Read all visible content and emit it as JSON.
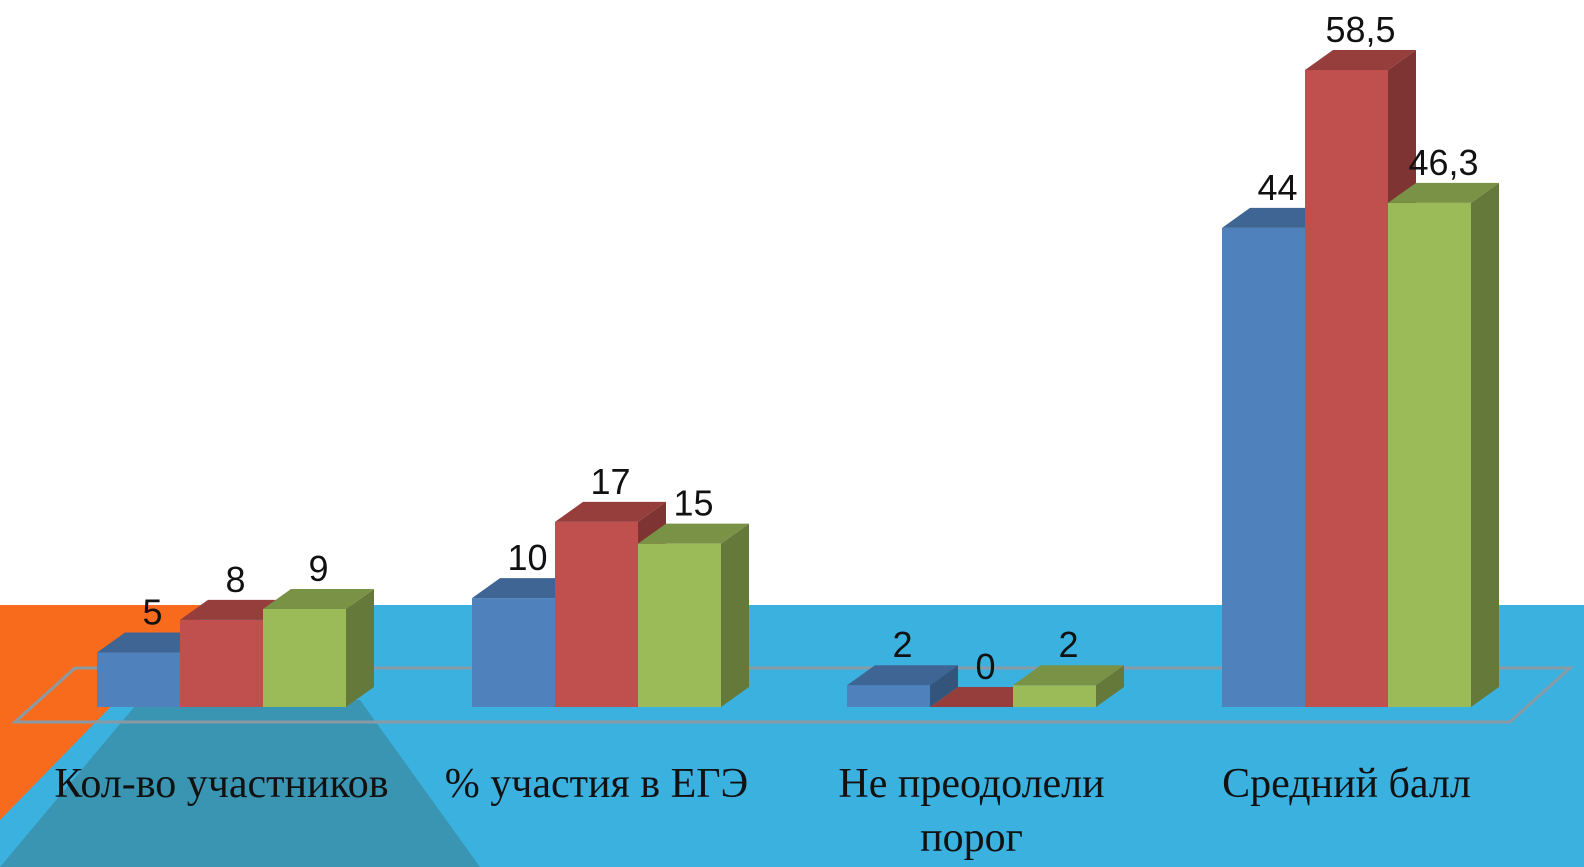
{
  "chart_data": {
    "type": "bar3d",
    "categories": [
      "Кол-во участников",
      "% участия в ЕГЭ",
      "Не преодолели порог",
      "Средний балл"
    ],
    "series": [
      {
        "color": "#4f81bd",
        "values": [
          5,
          10,
          2,
          44
        ]
      },
      {
        "color": "#c0504d",
        "values": [
          8,
          17,
          0,
          58.5
        ],
        "value_labels": [
          "8",
          "17",
          "0",
          "58,5"
        ]
      },
      {
        "color": "#9bbb59",
        "values": [
          9,
          15,
          2,
          46.3
        ],
        "value_labels": [
          "9",
          "15",
          "2",
          "46,3"
        ]
      }
    ]
  }
}
